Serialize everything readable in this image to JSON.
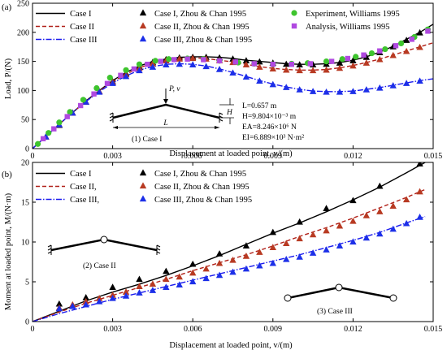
{
  "chart_data": [
    {
      "type": "line",
      "panel_label": "(a)",
      "xlabel": "Displacement at loaded point, v/(m)",
      "ylabel": "Load, P/(N)",
      "xlim": [
        0,
        0.015
      ],
      "ylim": [
        0,
        250
      ],
      "xticks": [
        "0",
        "0.003",
        "0.006",
        "0.009",
        "0.012",
        "0.015"
      ],
      "yticks": [
        "0",
        "50",
        "100",
        "150",
        "200",
        "250"
      ],
      "grid": false,
      "legend_position": "top",
      "series": [
        {
          "name": "Case I",
          "kind": "line",
          "style": "solid",
          "color": "#000000",
          "x": [
            0,
            0.0005,
            0.001,
            0.0015,
            0.002,
            0.0025,
            0.003,
            0.0035,
            0.004,
            0.0045,
            0.005,
            0.0055,
            0.006,
            0.0065,
            0.007,
            0.0075,
            0.008,
            0.0085,
            0.009,
            0.0095,
            0.01,
            0.0105,
            0.011,
            0.0115,
            0.012,
            0.0125,
            0.013,
            0.0135,
            0.014,
            0.0145,
            0.015
          ],
          "y": [
            0,
            21,
            42,
            62,
            82,
            100,
            117,
            131,
            142,
            150,
            154,
            157,
            158,
            158,
            157,
            155,
            152,
            150,
            148,
            146,
            145,
            145,
            146,
            148,
            152,
            158,
            166,
            176,
            188,
            200,
            214
          ]
        },
        {
          "name": "Case II",
          "kind": "line",
          "style": "dashed",
          "color": "#b02018",
          "x": [
            0,
            0.0005,
            0.001,
            0.0015,
            0.002,
            0.0025,
            0.003,
            0.0035,
            0.004,
            0.0045,
            0.005,
            0.0055,
            0.006,
            0.0065,
            0.007,
            0.0075,
            0.008,
            0.0085,
            0.009,
            0.0095,
            0.01,
            0.0105,
            0.011,
            0.0115,
            0.012,
            0.0125,
            0.013,
            0.0135,
            0.014,
            0.0145,
            0.015
          ],
          "y": [
            0,
            21,
            42,
            62,
            81,
            99,
            115,
            128,
            139,
            147,
            152,
            155,
            156,
            155,
            152,
            149,
            145,
            141,
            138,
            136,
            135,
            135,
            136,
            139,
            143,
            148,
            154,
            161,
            168,
            175,
            182
          ]
        },
        {
          "name": "Case III",
          "kind": "line",
          "style": "dashdot",
          "color": "#1a1aee",
          "x": [
            0,
            0.0005,
            0.001,
            0.0015,
            0.002,
            0.0025,
            0.003,
            0.0035,
            0.004,
            0.0045,
            0.005,
            0.0055,
            0.006,
            0.0065,
            0.007,
            0.0075,
            0.008,
            0.0085,
            0.009,
            0.0095,
            0.01,
            0.0105,
            0.011,
            0.0115,
            0.012,
            0.0125,
            0.013,
            0.0135,
            0.014,
            0.0145,
            0.015
          ],
          "y": [
            0,
            21,
            42,
            62,
            81,
            98,
            113,
            125,
            135,
            141,
            145,
            146,
            145,
            142,
            137,
            131,
            124,
            117,
            111,
            106,
            102,
            99,
            98,
            98,
            99,
            102,
            105,
            109,
            113,
            117,
            120
          ]
        },
        {
          "name": "Case I, Zhou & Chan 1995",
          "kind": "marker",
          "marker": "triangle",
          "color": "#000000",
          "x": [
            0.0005,
            0.001,
            0.0015,
            0.002,
            0.0025,
            0.003,
            0.0035,
            0.004,
            0.0045,
            0.005,
            0.0055,
            0.006,
            0.0065,
            0.007,
            0.0075,
            0.008,
            0.0085,
            0.009,
            0.0095,
            0.01,
            0.0105,
            0.011,
            0.0115,
            0.012,
            0.0125,
            0.013,
            0.0135,
            0.014,
            0.0145
          ],
          "y": [
            20,
            40,
            61,
            80,
            98,
            115,
            129,
            140,
            148,
            153,
            156,
            157,
            157,
            156,
            154,
            151,
            149,
            147,
            145,
            144,
            144,
            145,
            147,
            151,
            157,
            165,
            175,
            186,
            199
          ]
        },
        {
          "name": "Case II, Zhou & Chan 1995",
          "kind": "marker",
          "marker": "triangle",
          "color": "#b83a22",
          "x": [
            0.0005,
            0.001,
            0.0015,
            0.002,
            0.0025,
            0.003,
            0.0035,
            0.004,
            0.0045,
            0.005,
            0.0055,
            0.006,
            0.0065,
            0.007,
            0.0075,
            0.008,
            0.0085,
            0.009,
            0.0095,
            0.01,
            0.0105,
            0.011,
            0.0115,
            0.012,
            0.0125,
            0.013,
            0.0135,
            0.014,
            0.0145
          ],
          "y": [
            20,
            41,
            61,
            80,
            98,
            114,
            127,
            138,
            146,
            151,
            154,
            155,
            154,
            151,
            148,
            144,
            140,
            137,
            135,
            134,
            134,
            135,
            138,
            142,
            147,
            153,
            160,
            167,
            174
          ]
        },
        {
          "name": "Case III, Zhou & Chan 1995",
          "kind": "marker",
          "marker": "triangle",
          "color": "#1c2fe8",
          "x": [
            0.0005,
            0.001,
            0.0015,
            0.002,
            0.0025,
            0.003,
            0.0035,
            0.004,
            0.0045,
            0.005,
            0.0055,
            0.006,
            0.0065,
            0.007,
            0.0075,
            0.008,
            0.0085,
            0.009,
            0.0095,
            0.01,
            0.0105,
            0.011,
            0.0115,
            0.012,
            0.0125,
            0.013,
            0.0135,
            0.014,
            0.0145
          ],
          "y": [
            20,
            41,
            61,
            80,
            97,
            112,
            124,
            134,
            140,
            144,
            145,
            144,
            141,
            136,
            130,
            123,
            116,
            110,
            105,
            101,
            98,
            97,
            97,
            98,
            101,
            104,
            108,
            112,
            116
          ]
        },
        {
          "name": "Experiment, Williams 1995",
          "kind": "marker",
          "marker": "circle",
          "color": "#3ec42e",
          "x": [
            0.0002,
            0.0006,
            0.001,
            0.0014,
            0.0019,
            0.0024,
            0.0029,
            0.0035,
            0.004,
            0.0046,
            0.0051,
            0.0058,
            0.0064,
            0.007,
            0.0077,
            0.0083,
            0.009,
            0.0097,
            0.0103,
            0.011,
            0.0116,
            0.0121,
            0.0127,
            0.0132,
            0.0138,
            0.0143,
            0.0148
          ],
          "y": [
            8,
            27,
            45,
            63,
            84,
            104,
            122,
            135,
            145,
            151,
            154,
            155,
            154,
            151,
            148,
            146,
            145,
            146,
            147,
            150,
            154,
            158,
            164,
            171,
            181,
            192,
            205
          ]
        },
        {
          "name": "Analysis, Williams 1995",
          "kind": "marker",
          "marker": "square",
          "color": "#b049e0",
          "x": [
            0.0004,
            0.0008,
            0.0013,
            0.0018,
            0.0023,
            0.0028,
            0.0033,
            0.0038,
            0.0043,
            0.0048,
            0.0053,
            0.0058,
            0.0064,
            0.007,
            0.0076,
            0.0083,
            0.009,
            0.0097,
            0.0104,
            0.0112,
            0.0118,
            0.0124,
            0.013,
            0.0136,
            0.0142,
            0.0148
          ],
          "y": [
            17,
            34,
            55,
            74,
            94,
            112,
            126,
            137,
            145,
            150,
            153,
            154,
            153,
            151,
            149,
            146,
            145,
            145,
            146,
            150,
            155,
            161,
            168,
            177,
            188,
            202
          ]
        }
      ],
      "legend": [
        {
          "label": "Case I",
          "series": 0
        },
        {
          "label": "Case II",
          "series": 1
        },
        {
          "label": "Case III",
          "series": 2
        },
        {
          "label": "Case I, Zhou & Chan 1995",
          "series": 3
        },
        {
          "label": "Case II, Zhou & Chan 1995",
          "series": 4
        },
        {
          "label": "Case III, Zhou & Chan 1995",
          "series": 5
        },
        {
          "label": "Experiment, Williams 1995",
          "series": 6
        },
        {
          "label": "Analysis, Williams 1995",
          "series": 7
        }
      ],
      "annotations": {
        "load_label": "P, v",
        "height_label": "H",
        "span_label": "L",
        "case_label": "(1) Case I",
        "params": [
          "L=0.657 m",
          "H=9.804×10⁻³ m",
          "EA=8.246×10⁶ N",
          "EI=6.889×10³ N·m²"
        ]
      }
    },
    {
      "type": "line",
      "panel_label": "(b)",
      "xlabel": "Displacement at loaded point, v/(m)",
      "ylabel": "Moment at loaded point, M/(N·m)",
      "xlim": [
        0,
        0.015
      ],
      "ylim": [
        0,
        20
      ],
      "xticks": [
        "0",
        "0.003",
        "0.006",
        "0.009",
        "0.012",
        "0.015"
      ],
      "yticks": [
        "0",
        "5",
        "10",
        "15",
        "20"
      ],
      "grid": false,
      "legend_position": "top",
      "series": [
        {
          "name": "Case I",
          "kind": "line",
          "style": "solid",
          "color": "#000000",
          "x": [
            0,
            0.001,
            0.002,
            0.003,
            0.004,
            0.005,
            0.006,
            0.007,
            0.008,
            0.009,
            0.01,
            0.011,
            0.012,
            0.013,
            0.014,
            0.0147
          ],
          "y": [
            0,
            1.3,
            2.6,
            3.7,
            4.7,
            5.8,
            7.0,
            8.3,
            9.7,
            11.1,
            12.4,
            13.8,
            15.3,
            16.9,
            18.7,
            20.0
          ]
        },
        {
          "name": "Case II,",
          "kind": "line",
          "style": "dashed",
          "color": "#b02018",
          "x": [
            0,
            0.001,
            0.002,
            0.003,
            0.004,
            0.005,
            0.006,
            0.007,
            0.008,
            0.009,
            0.01,
            0.011,
            0.012,
            0.013,
            0.014,
            0.0147
          ],
          "y": [
            0,
            1.2,
            2.3,
            3.3,
            4.3,
            5.3,
            6.4,
            7.4,
            8.4,
            9.5,
            10.7,
            11.8,
            13.0,
            14.3,
            15.6,
            16.6
          ]
        },
        {
          "name": "Case III,",
          "kind": "line",
          "style": "dashdot",
          "color": "#1a1aee",
          "x": [
            0,
            0.001,
            0.002,
            0.003,
            0.004,
            0.005,
            0.006,
            0.007,
            0.008,
            0.009,
            0.01,
            0.011,
            0.012,
            0.013,
            0.014,
            0.0147
          ],
          "y": [
            0,
            1.0,
            1.9,
            2.8,
            3.6,
            4.4,
            5.2,
            6.0,
            6.8,
            7.6,
            8.4,
            9.3,
            10.2,
            11.2,
            12.4,
            13.2
          ]
        },
        {
          "name": "Case I, Zhou & Chan 1995",
          "kind": "marker",
          "marker": "triangle",
          "color": "#000000",
          "x": [
            0.001,
            0.002,
            0.003,
            0.004,
            0.005,
            0.006,
            0.007,
            0.008,
            0.009,
            0.01,
            0.011,
            0.012,
            0.013,
            0.0145
          ],
          "y": [
            2.2,
            3.0,
            4.3,
            5.3,
            6.3,
            7.2,
            8.5,
            9.5,
            11.2,
            12.5,
            14.2,
            15.2,
            17.0,
            19.8
          ]
        },
        {
          "name": "Case II, Zhou & Chan 1995",
          "kind": "marker",
          "marker": "triangle",
          "color": "#b83a22",
          "x": [
            0.001,
            0.0015,
            0.002,
            0.0025,
            0.003,
            0.0035,
            0.004,
            0.0045,
            0.005,
            0.0055,
            0.006,
            0.0065,
            0.007,
            0.0075,
            0.008,
            0.0085,
            0.009,
            0.0095,
            0.01,
            0.0105,
            0.011,
            0.0115,
            0.012,
            0.0125,
            0.013,
            0.0135,
            0.014,
            0.0145
          ],
          "y": [
            1.7,
            2.1,
            2.5,
            2.9,
            3.3,
            3.7,
            4.4,
            4.7,
            5.3,
            5.6,
            6.1,
            6.6,
            7.3,
            7.7,
            8.2,
            8.7,
            9.3,
            9.8,
            10.4,
            10.9,
            11.4,
            12.0,
            12.6,
            13.3,
            13.8,
            14.5,
            15.3,
            16.3
          ]
        },
        {
          "name": "Case III, Zhou & Chan 1995",
          "kind": "marker",
          "marker": "triangle",
          "color": "#1c2fe8",
          "x": [
            0.001,
            0.0015,
            0.002,
            0.0025,
            0.003,
            0.0035,
            0.004,
            0.0045,
            0.005,
            0.0055,
            0.006,
            0.0065,
            0.007,
            0.0075,
            0.008,
            0.0085,
            0.009,
            0.0095,
            0.01,
            0.0105,
            0.011,
            0.0115,
            0.012,
            0.0125,
            0.013,
            0.0135,
            0.014,
            0.0145
          ],
          "y": [
            1.6,
            1.9,
            2.1,
            2.5,
            2.9,
            3.2,
            3.6,
            3.9,
            4.3,
            4.6,
            5.0,
            5.4,
            5.8,
            6.2,
            6.6,
            7.0,
            7.3,
            7.8,
            8.1,
            8.6,
            9.0,
            9.5,
            10.0,
            10.5,
            11.0,
            11.6,
            12.3,
            13.1
          ]
        }
      ],
      "legend": [
        {
          "label": "Case I",
          "series": 0
        },
        {
          "label": "Case II,",
          "series": 1
        },
        {
          "label": "Case III,",
          "series": 2
        },
        {
          "label": "Case I, Zhou & Chan 1995",
          "series": 3
        },
        {
          "label": "Case II, Zhou & Chan 1995",
          "series": 4
        },
        {
          "label": "Case III, Zhou & Chan 1995",
          "series": 5
        }
      ],
      "annotations": {
        "case2_label": "(2) Case II",
        "case3_label": "(3) Case III"
      }
    }
  ]
}
